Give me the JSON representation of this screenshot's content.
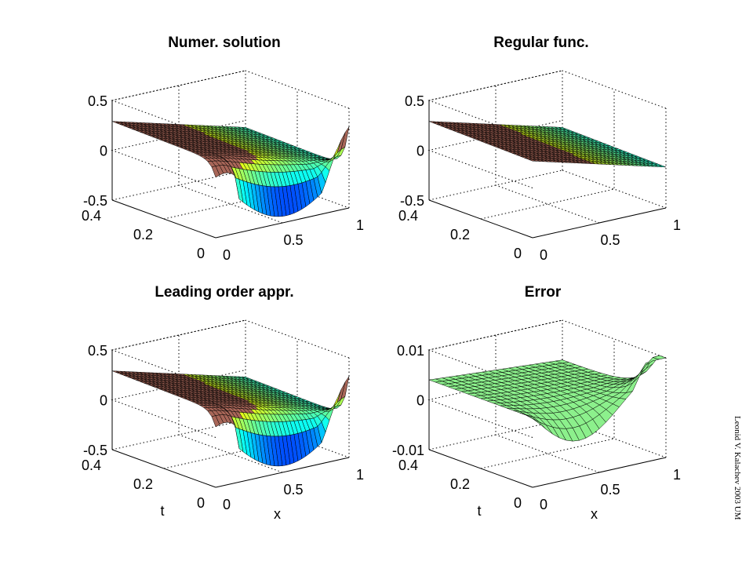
{
  "credit": "Leonid V. Kalachev 2003 UM",
  "chart_data": [
    {
      "type": "surface",
      "title": "Numer. solution",
      "xlabel": "",
      "ylabel": "",
      "xlim": [
        0,
        1
      ],
      "tlim": [
        0,
        0.4
      ],
      "zlim": [
        -0.5,
        0.5
      ],
      "xticks": [
        "0",
        "0.5",
        "1"
      ],
      "tticks": [
        "0",
        "0.2",
        "0.4"
      ],
      "zticks": [
        "-0.5",
        "0",
        "0.5"
      ],
      "colormap": "jet",
      "grid": true
    },
    {
      "type": "surface",
      "title": "Regular func.",
      "xlabel": "",
      "ylabel": "",
      "xlim": [
        0,
        1
      ],
      "tlim": [
        0,
        0.4
      ],
      "zlim": [
        -0.5,
        0.5
      ],
      "xticks": [
        "0",
        "0.5",
        "1"
      ],
      "tticks": [
        "0",
        "0.2",
        "0.4"
      ],
      "zticks": [
        "-0.5",
        "0",
        "0.5"
      ],
      "colormap": "jet",
      "grid": true
    },
    {
      "type": "surface",
      "title": "Leading order appr.",
      "xlabel": "x",
      "ylabel": "t",
      "xlim": [
        0,
        1
      ],
      "tlim": [
        0,
        0.4
      ],
      "zlim": [
        -0.5,
        0.5
      ],
      "xticks": [
        "0",
        "0.5",
        "1"
      ],
      "tticks": [
        "0",
        "0.2",
        "0.4"
      ],
      "zticks": [
        "-0.5",
        "0",
        "0.5"
      ],
      "colormap": "jet",
      "grid": true
    },
    {
      "type": "surface",
      "title": "Error",
      "xlabel": "x",
      "ylabel": "t",
      "xlim": [
        0,
        1
      ],
      "tlim": [
        0,
        0.4
      ],
      "zlim": [
        -0.01,
        0.01
      ],
      "xticks": [
        "0",
        "0.5",
        "1"
      ],
      "tticks": [
        "0",
        "0.2",
        "0.4"
      ],
      "zticks": [
        "-0.01",
        "0",
        "0.01"
      ],
      "colormap": "light-green",
      "grid": true
    }
  ]
}
